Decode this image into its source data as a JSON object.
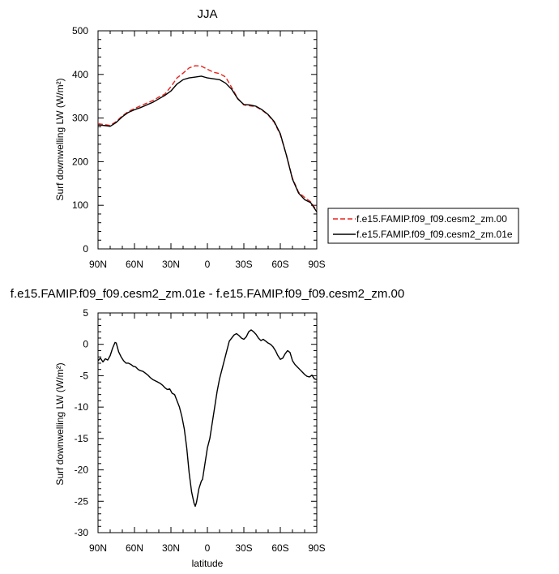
{
  "chart_data": [
    {
      "type": "line",
      "title": "JJA",
      "xlabel": "",
      "ylabel": "Surf downwelling LW (W/m²)",
      "xlim": [
        -90,
        90
      ],
      "ylim": [
        0,
        500
      ],
      "x_ticks": [
        -90,
        -60,
        -30,
        0,
        30,
        60,
        90
      ],
      "x_tick_labels": [
        "90N",
        "60N",
        "30N",
        "0",
        "30S",
        "60S",
        "90S"
      ],
      "y_ticks": [
        0,
        100,
        200,
        300,
        400,
        500
      ],
      "y_tick_labels": [
        "0",
        "100",
        "200",
        "300",
        "400",
        "500"
      ],
      "legend_position": "right",
      "series": [
        {
          "name": "f.e15.FAMIP.f09_f09.cesm2_zm.00",
          "color": "#e8231d",
          "dash": "dashed",
          "points": [
            [
              -90,
              287
            ],
            [
              -85,
              285
            ],
            [
              -80,
              283
            ],
            [
              -75,
              292
            ],
            [
              -70,
              305
            ],
            [
              -65,
              315
            ],
            [
              -60,
              322
            ],
            [
              -55,
              328
            ],
            [
              -50,
              334
            ],
            [
              -45,
              340
            ],
            [
              -40,
              348
            ],
            [
              -35,
              355
            ],
            [
              -30,
              372
            ],
            [
              -25,
              392
            ],
            [
              -20,
              403
            ],
            [
              -15,
              415
            ],
            [
              -10,
              420
            ],
            [
              -5,
              419
            ],
            [
              0,
              412
            ],
            [
              5,
              405
            ],
            [
              10,
              402
            ],
            [
              15,
              394
            ],
            [
              20,
              370
            ],
            [
              25,
              345
            ],
            [
              30,
              330
            ],
            [
              35,
              328
            ],
            [
              40,
              326
            ],
            [
              45,
              318
            ],
            [
              50,
              307
            ],
            [
              55,
              290
            ],
            [
              60,
              262
            ],
            [
              65,
              215
            ],
            [
              70,
              162
            ],
            [
              75,
              130
            ],
            [
              80,
              118
            ],
            [
              85,
              108
            ],
            [
              90,
              88
            ]
          ]
        },
        {
          "name": "f.e15.FAMIP.f09_f09.cesm2_zm.01e",
          "color": "#000000",
          "dash": "solid",
          "points": [
            [
              -90,
              284
            ],
            [
              -85,
              283
            ],
            [
              -80,
              281
            ],
            [
              -75,
              290
            ],
            [
              -70,
              303
            ],
            [
              -65,
              313
            ],
            [
              -60,
              319
            ],
            [
              -55,
              324
            ],
            [
              -50,
              330
            ],
            [
              -45,
              336
            ],
            [
              -40,
              344
            ],
            [
              -35,
              352
            ],
            [
              -30,
              362
            ],
            [
              -25,
              378
            ],
            [
              -20,
              388
            ],
            [
              -15,
              392
            ],
            [
              -10,
              394
            ],
            [
              -5,
              396
            ],
            [
              0,
              392
            ],
            [
              5,
              390
            ],
            [
              10,
              388
            ],
            [
              15,
              380
            ],
            [
              20,
              366
            ],
            [
              25,
              344
            ],
            [
              30,
              331
            ],
            [
              35,
              330
            ],
            [
              40,
              327
            ],
            [
              45,
              319
            ],
            [
              50,
              308
            ],
            [
              55,
              292
            ],
            [
              60,
              264
            ],
            [
              65,
              215
            ],
            [
              70,
              160
            ],
            [
              75,
              128
            ],
            [
              80,
              113
            ],
            [
              85,
              106
            ],
            [
              90,
              85
            ]
          ]
        }
      ]
    },
    {
      "type": "line",
      "title": "f.e15.FAMIP.f09_f09.cesm2_zm.01e - f.e15.FAMIP.f09_f09.cesm2_zm.00",
      "xlabel": "latitude",
      "ylabel": "Surf downwelling LW (W/m²)",
      "xlim": [
        -90,
        90
      ],
      "ylim": [
        -30,
        5
      ],
      "x_ticks": [
        -90,
        -60,
        -30,
        0,
        30,
        60,
        90
      ],
      "x_tick_labels": [
        "90N",
        "60N",
        "30N",
        "0",
        "30S",
        "60S",
        "90S"
      ],
      "y_ticks": [
        -30,
        -25,
        -20,
        -15,
        -10,
        -5,
        0,
        5
      ],
      "y_tick_labels": [
        "-30",
        "-25",
        "-20",
        "-15",
        "-10",
        "-5",
        "0",
        "5"
      ],
      "series": [
        {
          "color": "#000000",
          "dash": "solid",
          "points": [
            [
              -90,
              -2.6
            ],
            [
              -88,
              -2.2
            ],
            [
              -86,
              -2.8
            ],
            [
              -84,
              -2.3
            ],
            [
              -82,
              -2.5
            ],
            [
              -80,
              -1.8
            ],
            [
              -78,
              -0.6
            ],
            [
              -76,
              0.3
            ],
            [
              -75,
              0.2
            ],
            [
              -73,
              -1.2
            ],
            [
              -71,
              -2.0
            ],
            [
              -69,
              -2.6
            ],
            [
              -67,
              -3.0
            ],
            [
              -65,
              -3.0
            ],
            [
              -63,
              -3.2
            ],
            [
              -61,
              -3.5
            ],
            [
              -59,
              -3.6
            ],
            [
              -57,
              -4.0
            ],
            [
              -55,
              -4.2
            ],
            [
              -53,
              -4.3
            ],
            [
              -51,
              -4.6
            ],
            [
              -49,
              -4.9
            ],
            [
              -47,
              -5.3
            ],
            [
              -45,
              -5.6
            ],
            [
              -43,
              -5.8
            ],
            [
              -41,
              -6.0
            ],
            [
              -39,
              -6.2
            ],
            [
              -37,
              -6.5
            ],
            [
              -35,
              -6.9
            ],
            [
              -33,
              -7.2
            ],
            [
              -31,
              -7.1
            ],
            [
              -29,
              -7.8
            ],
            [
              -27,
              -8.0
            ],
            [
              -25,
              -9.0
            ],
            [
              -23,
              -10.0
            ],
            [
              -21,
              -11.5
            ],
            [
              -19,
              -13.5
            ],
            [
              -17,
              -16.5
            ],
            [
              -15,
              -20.5
            ],
            [
              -13,
              -23.5
            ],
            [
              -11,
              -25.3
            ],
            [
              -10,
              -25.8
            ],
            [
              -9,
              -25.2
            ],
            [
              -7,
              -23.0
            ],
            [
              -5,
              -21.8
            ],
            [
              -4,
              -21.5
            ],
            [
              -2,
              -19.0
            ],
            [
              0,
              -16.5
            ],
            [
              2,
              -15.0
            ],
            [
              4,
              -12.5
            ],
            [
              6,
              -10.0
            ],
            [
              8,
              -7.5
            ],
            [
              10,
              -5.5
            ],
            [
              12,
              -4.0
            ],
            [
              14,
              -2.5
            ],
            [
              16,
              -1.0
            ],
            [
              18,
              0.5
            ],
            [
              20,
              1.0
            ],
            [
              22,
              1.5
            ],
            [
              24,
              1.7
            ],
            [
              26,
              1.4
            ],
            [
              28,
              1.0
            ],
            [
              30,
              0.8
            ],
            [
              32,
              1.2
            ],
            [
              34,
              2.0
            ],
            [
              36,
              2.3
            ],
            [
              38,
              2.0
            ],
            [
              40,
              1.6
            ],
            [
              42,
              1.0
            ],
            [
              44,
              0.6
            ],
            [
              46,
              0.8
            ],
            [
              48,
              0.5
            ],
            [
              50,
              0.2
            ],
            [
              52,
              0.0
            ],
            [
              54,
              -0.4
            ],
            [
              56,
              -1.0
            ],
            [
              58,
              -1.8
            ],
            [
              60,
              -2.4
            ],
            [
              62,
              -2.2
            ],
            [
              64,
              -1.5
            ],
            [
              66,
              -1.0
            ],
            [
              68,
              -1.3
            ],
            [
              70,
              -2.6
            ],
            [
              72,
              -3.2
            ],
            [
              74,
              -3.6
            ],
            [
              76,
              -4.0
            ],
            [
              78,
              -4.4
            ],
            [
              80,
              -4.8
            ],
            [
              82,
              -5.1
            ],
            [
              84,
              -5.2
            ],
            [
              86,
              -4.9
            ],
            [
              88,
              -5.5
            ],
            [
              90,
              -5.6
            ]
          ]
        }
      ]
    }
  ]
}
